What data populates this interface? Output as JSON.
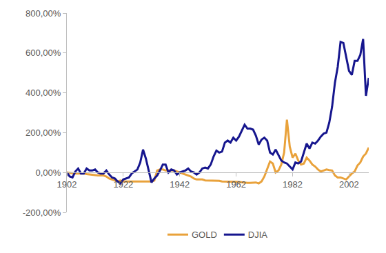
{
  "chart_data": {
    "type": "line",
    "x": [
      1902,
      1903,
      1904,
      1905,
      1906,
      1907,
      1908,
      1909,
      1910,
      1911,
      1912,
      1913,
      1914,
      1915,
      1916,
      1917,
      1918,
      1919,
      1920,
      1921,
      1922,
      1923,
      1924,
      1925,
      1926,
      1927,
      1928,
      1929,
      1930,
      1931,
      1932,
      1933,
      1934,
      1935,
      1936,
      1937,
      1938,
      1939,
      1940,
      1941,
      1942,
      1943,
      1944,
      1945,
      1946,
      1947,
      1948,
      1949,
      1950,
      1951,
      1952,
      1953,
      1954,
      1955,
      1956,
      1957,
      1958,
      1959,
      1960,
      1961,
      1962,
      1963,
      1964,
      1965,
      1966,
      1967,
      1968,
      1969,
      1970,
      1971,
      1972,
      1973,
      1974,
      1975,
      1976,
      1977,
      1978,
      1979,
      1980,
      1981,
      1982,
      1983,
      1984,
      1985,
      1986,
      1987,
      1988,
      1989,
      1990,
      1991,
      1992,
      1993,
      1994,
      1995,
      1996,
      1997,
      1998,
      1999,
      2000,
      2001,
      2002,
      2003,
      2004,
      2005,
      2006,
      2007,
      2008,
      2009
    ],
    "series": [
      {
        "name": "GOLD",
        "color": "#E9A23B",
        "values": [
          0,
          -2,
          -3,
          -5,
          -5,
          -5,
          -5,
          -8,
          -10,
          -10,
          -12,
          -15,
          -15,
          -15,
          -20,
          -30,
          -35,
          -40,
          -45,
          -40,
          -45,
          -45,
          -45,
          -45,
          -47,
          -47,
          -47,
          -47,
          -45,
          -45,
          -45,
          -40,
          10,
          15,
          15,
          10,
          10,
          10,
          10,
          5,
          0,
          -5,
          -10,
          -15,
          -20,
          -30,
          -35,
          -35,
          -35,
          -40,
          -40,
          -40,
          -40,
          -40,
          -42,
          -45,
          -45,
          -45,
          -45,
          -47,
          -47,
          -48,
          -50,
          -50,
          -52,
          -52,
          -50,
          -50,
          -55,
          -45,
          -20,
          20,
          55,
          45,
          0,
          10,
          40,
          100,
          265,
          130,
          75,
          95,
          60,
          40,
          45,
          75,
          60,
          40,
          30,
          15,
          5,
          10,
          15,
          12,
          10,
          -15,
          -25,
          -25,
          -30,
          -35,
          -20,
          -5,
          5,
          35,
          50,
          80,
          95,
          125
        ]
      },
      {
        "name": "DJIA",
        "color": "#16168E",
        "values": [
          0,
          -20,
          -25,
          5,
          20,
          -5,
          -5,
          20,
          10,
          10,
          15,
          0,
          -5,
          -5,
          10,
          -10,
          -25,
          -30,
          -45,
          -55,
          -35,
          -30,
          -25,
          -5,
          5,
          15,
          50,
          115,
          70,
          10,
          -50,
          -30,
          -15,
          10,
          40,
          40,
          0,
          15,
          10,
          -10,
          0,
          5,
          10,
          20,
          5,
          0,
          -10,
          0,
          20,
          25,
          20,
          40,
          80,
          110,
          100,
          105,
          150,
          160,
          150,
          175,
          160,
          180,
          210,
          240,
          220,
          220,
          215,
          185,
          140,
          165,
          175,
          160,
          100,
          90,
          115,
          90,
          60,
          50,
          45,
          30,
          15,
          50,
          45,
          55,
          100,
          145,
          120,
          150,
          145,
          160,
          180,
          195,
          200,
          250,
          330,
          450,
          530,
          655,
          650,
          580,
          510,
          490,
          560,
          560,
          590,
          670,
          385,
          475
        ]
      }
    ],
    "xlim": [
      1902,
      2009
    ],
    "xticks": [
      1902,
      1922,
      1942,
      1962,
      1982,
      2002
    ],
    "ylim": [
      -200,
      800
    ],
    "yticks": [
      {
        "value": -200,
        "label": "-200,00%"
      },
      {
        "value": 0,
        "label": "0,00%"
      },
      {
        "value": 200,
        "label": "200,00%"
      },
      {
        "value": 400,
        "label": "400,00%"
      },
      {
        "value": 600,
        "label": "600,00%"
      },
      {
        "value": 800,
        "label": "800,00%"
      }
    ],
    "grid": false,
    "legend": "bottom"
  }
}
